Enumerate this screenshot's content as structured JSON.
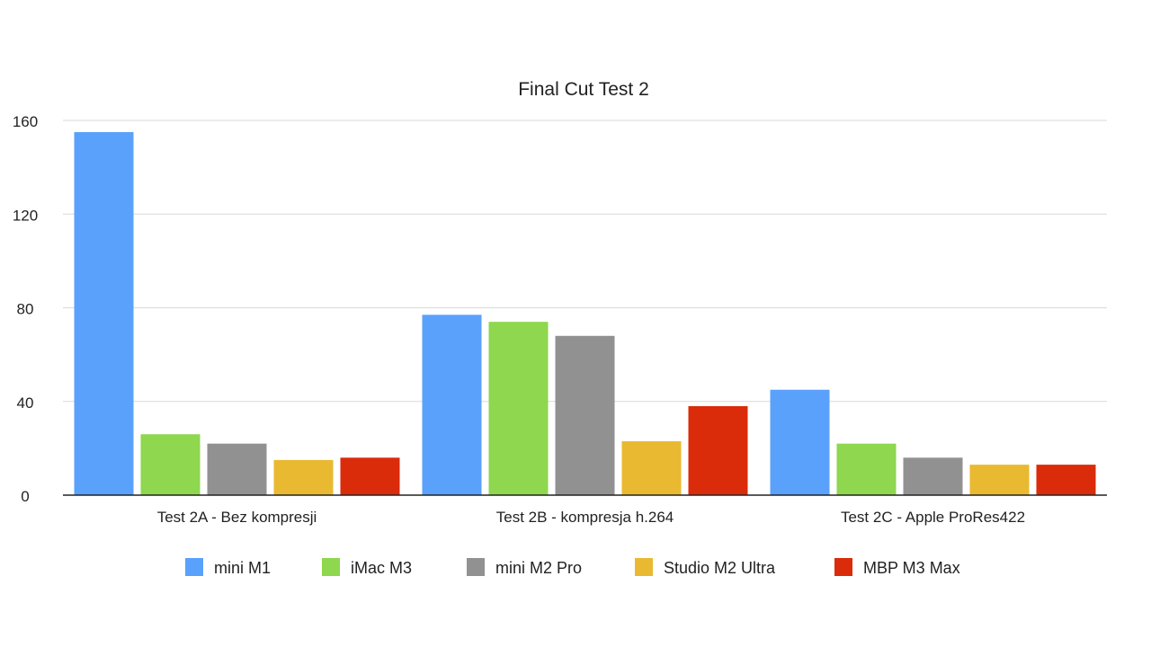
{
  "chart_data": {
    "type": "bar",
    "title": "Final Cut Test 2",
    "xlabel": "",
    "ylabel": "",
    "ylim": [
      0,
      160
    ],
    "yticks": [
      "0",
      "40",
      "80",
      "120",
      "160"
    ],
    "grid": true,
    "legend_position": "bottom",
    "categories": [
      "Test 2A - Bez kompresji",
      "Test 2B - kompresja h.264",
      "Test 2C - Apple ProRes422"
    ],
    "series": [
      {
        "name": "mini M1",
        "color": "#5aa1fc",
        "values": [
          155,
          77,
          45
        ]
      },
      {
        "name": "iMac M3",
        "color": "#8ed74f",
        "values": [
          26,
          74,
          22
        ]
      },
      {
        "name": "mini M2 Pro",
        "color": "#919191",
        "values": [
          22,
          68,
          16
        ]
      },
      {
        "name": "Studio M2 Ultra",
        "color": "#e9b931",
        "values": [
          15,
          23,
          13
        ]
      },
      {
        "name": "MBP M3 Max",
        "color": "#da2b0a",
        "values": [
          16,
          38,
          13
        ]
      }
    ]
  }
}
